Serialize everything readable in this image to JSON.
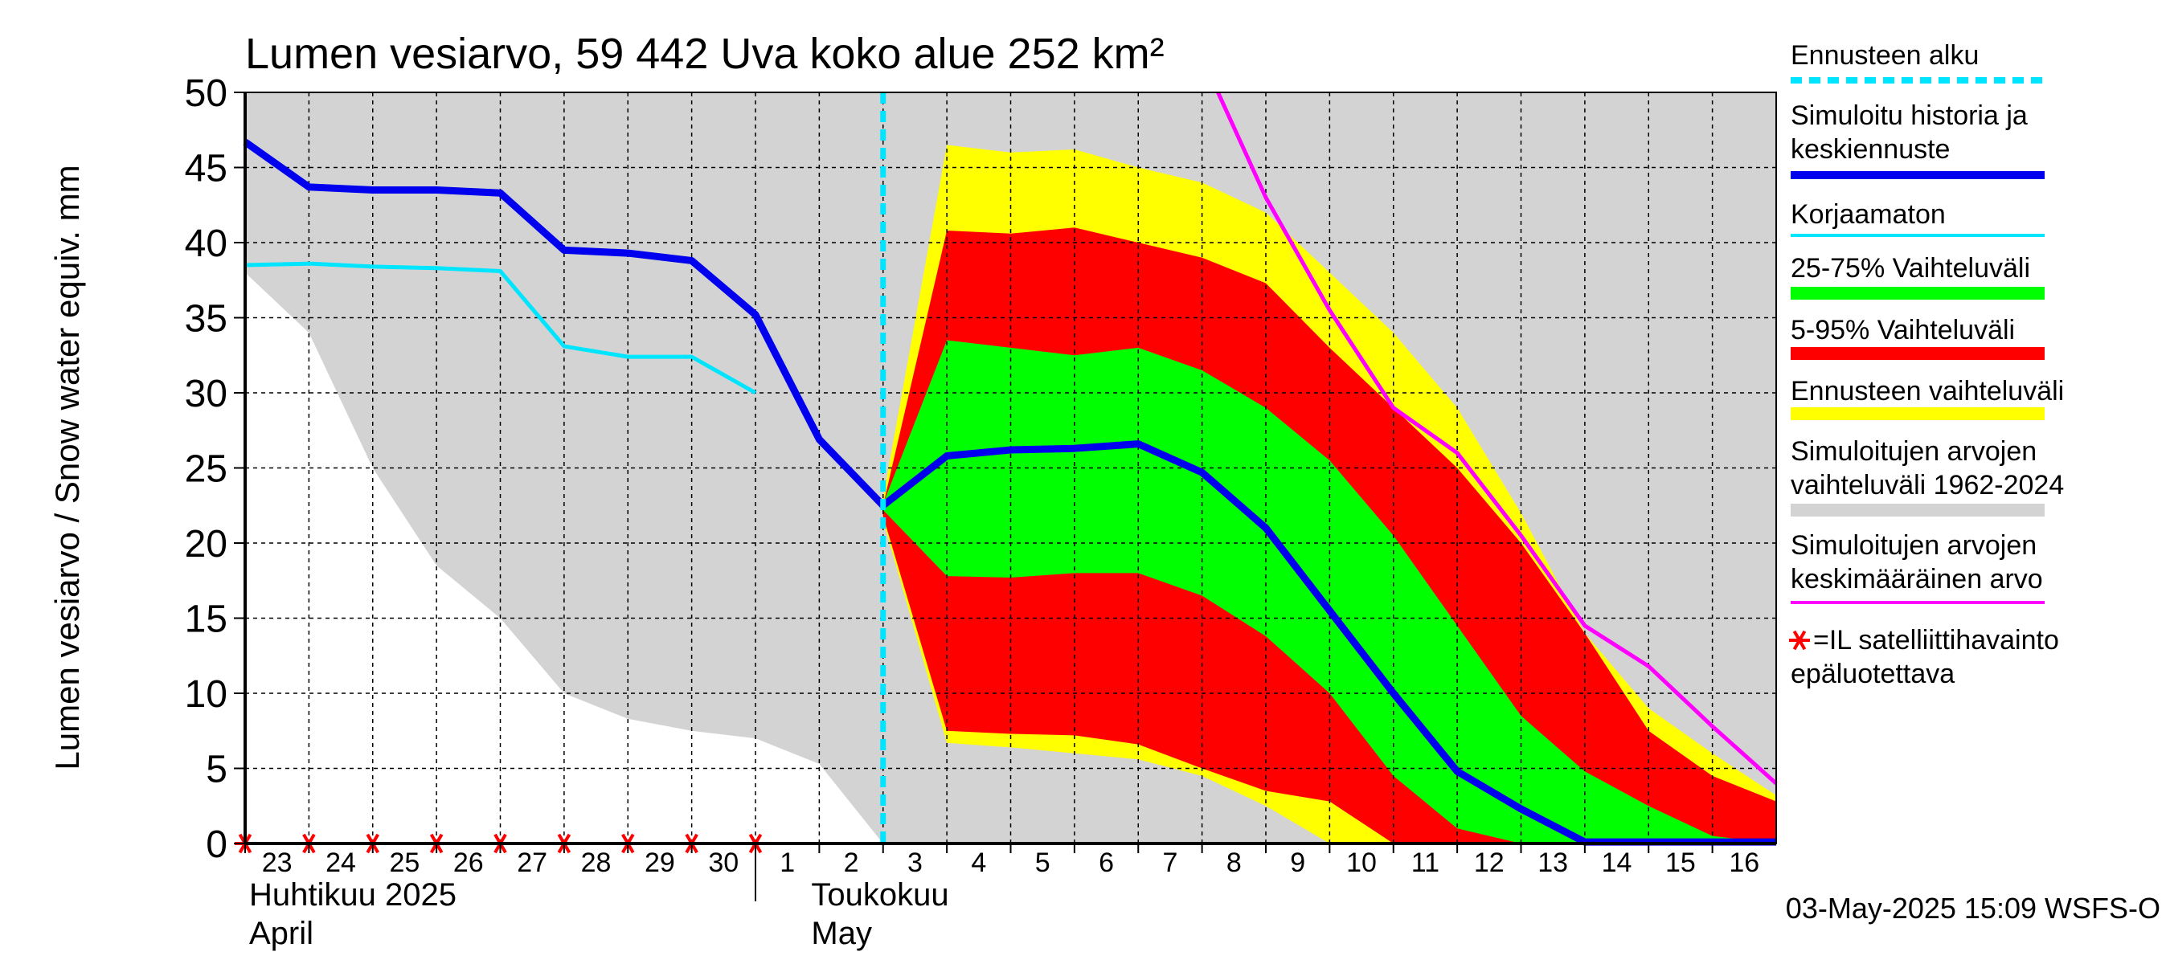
{
  "chart_data": {
    "type": "area",
    "title": "Lumen vesiarvo, 59 442 Uva koko alue 252 km²",
    "ylabel": "Lumen vesiarvo / Snow water equiv.    mm",
    "ylim": [
      0,
      50
    ],
    "yticks": [
      "0",
      "5",
      "10",
      "15",
      "20",
      "25",
      "30",
      "35",
      "40",
      "45",
      "50"
    ],
    "xlim": [
      0,
      24
    ],
    "xticks": [
      "23",
      "24",
      "25",
      "26",
      "27",
      "28",
      "29",
      "30",
      "1",
      "2",
      "3",
      "4",
      "5",
      "6",
      "7",
      "8",
      "9",
      "10",
      "11",
      "12",
      "13",
      "14",
      "15",
      "16"
    ],
    "month_labels": [
      {
        "fi": "Huhtikuu  2025",
        "en": "April"
      },
      {
        "fi": "Toukokuu",
        "en": "May"
      }
    ],
    "forecast_start_x": 10,
    "timestamp": "03-May-2025 15:09 WSFS-O",
    "satellite_x": [
      0,
      1,
      2,
      3,
      4,
      5,
      6,
      7,
      8
    ],
    "series": [
      {
        "name": "hist_range",
        "kind": "band",
        "color": "#d3d3d3",
        "x": [
          0,
          1,
          2,
          3,
          4,
          5,
          6,
          7,
          8,
          9,
          10,
          24
        ],
        "upper": [
          50,
          50,
          50,
          50,
          50,
          50,
          50,
          50,
          50,
          50,
          50,
          50
        ],
        "lower": [
          38,
          34,
          25,
          18.5,
          15,
          10,
          8.3,
          7.5,
          7,
          5.3,
          0,
          0
        ]
      },
      {
        "name": "forecast_range",
        "kind": "band",
        "color": "#ffff00",
        "x": [
          10,
          11,
          12,
          13,
          14,
          15,
          16,
          17,
          18,
          19,
          20,
          21,
          22,
          23,
          24
        ],
        "upper": [
          23,
          46.5,
          46,
          46.2,
          45,
          44,
          42,
          38,
          34,
          29,
          22,
          14,
          9,
          6,
          3.2
        ],
        "lower": [
          21.5,
          6.7,
          6.4,
          6,
          5.6,
          4.5,
          2.5,
          0,
          0,
          0,
          0,
          0,
          0,
          0,
          0
        ]
      },
      {
        "name": "range_5_95",
        "kind": "band",
        "color": "#ff0000",
        "x": [
          10,
          11,
          12,
          13,
          14,
          15,
          16,
          17,
          18,
          19,
          20,
          21,
          22,
          23,
          24
        ],
        "upper": [
          22.5,
          40.8,
          40.6,
          41,
          40,
          39,
          37.3,
          33,
          29,
          25,
          20,
          14,
          7.5,
          4.5,
          2.8
        ],
        "lower": [
          21.8,
          7.5,
          7.3,
          7.2,
          6.6,
          5,
          3.5,
          2.8,
          0,
          0,
          0,
          0,
          0,
          0,
          0
        ]
      },
      {
        "name": "range_25_75",
        "kind": "band",
        "color": "#00ff00",
        "x": [
          10,
          11,
          12,
          13,
          14,
          15,
          16,
          17,
          18,
          19,
          20,
          21,
          22,
          23,
          24
        ],
        "upper": [
          22.6,
          33.5,
          33,
          32.5,
          33,
          31.5,
          29,
          25.5,
          20.5,
          14.5,
          8.5,
          4.8,
          2.5,
          0.5,
          0
        ],
        "lower": [
          22.2,
          17.8,
          17.7,
          18,
          18,
          16.5,
          13.8,
          10,
          4.5,
          1,
          0,
          0,
          0,
          0,
          0
        ]
      },
      {
        "name": "mean",
        "kind": "line",
        "color": "#ff00ff",
        "width": 5,
        "x": [
          15.25,
          16,
          17,
          18,
          19,
          20,
          21,
          22,
          23,
          24
        ],
        "y": [
          50,
          43,
          35.5,
          29,
          26,
          20.5,
          14.5,
          11.8,
          7.8,
          4
        ]
      },
      {
        "name": "uncorrected",
        "kind": "line",
        "color": "#00e5ff",
        "width": 5,
        "x": [
          0,
          1,
          2,
          3,
          4,
          5,
          6,
          7,
          8
        ],
        "y": [
          38.5,
          38.6,
          38.4,
          38.3,
          38.1,
          33.1,
          32.4,
          32.4,
          30
        ]
      },
      {
        "name": "median",
        "kind": "line",
        "color": "#0000ee",
        "width": 9,
        "x": [
          0,
          1,
          2,
          3,
          4,
          5,
          6,
          7,
          8,
          9,
          10,
          11,
          12,
          13,
          14,
          15,
          16,
          17,
          18,
          19,
          20,
          21,
          22,
          23,
          24
        ],
        "y": [
          46.7,
          43.7,
          43.5,
          43.5,
          43.3,
          39.5,
          39.3,
          38.8,
          35.2,
          26.9,
          22.5,
          25.8,
          26.2,
          26.3,
          26.6,
          24.7,
          21,
          15.5,
          10,
          4.8,
          2.3,
          0.1,
          0.1,
          0.1,
          0.1
        ]
      }
    ],
    "legend": [
      {
        "label": "Ennusteen alku",
        "style": "dash",
        "color": "#00e5ff"
      },
      {
        "label": "Simuloitu historia ja\nkeskiennuste",
        "style": "thick",
        "color": "#0000ee"
      },
      {
        "label": "Korjaamaton",
        "style": "line",
        "color": "#00e5ff"
      },
      {
        "label": "25-75% Vaihteluväli",
        "style": "band",
        "color": "#00ff00"
      },
      {
        "label": "5-95% Vaihteluväli",
        "style": "band",
        "color": "#ff0000"
      },
      {
        "label": "Ennusteen vaihteluväli",
        "style": "band",
        "color": "#ffff00"
      },
      {
        "label": "Simuloitujen arvojen\nvaihteluväli 1962-2024",
        "style": "band",
        "color": "#d3d3d3"
      },
      {
        "label": "Simuloitujen arvojen\nkeskimääräinen arvo",
        "style": "line",
        "color": "#ff00ff"
      },
      {
        "label": "=IL satelliittihavainto\nepäluotettava",
        "style": "star",
        "color": "#ff0000"
      }
    ]
  }
}
